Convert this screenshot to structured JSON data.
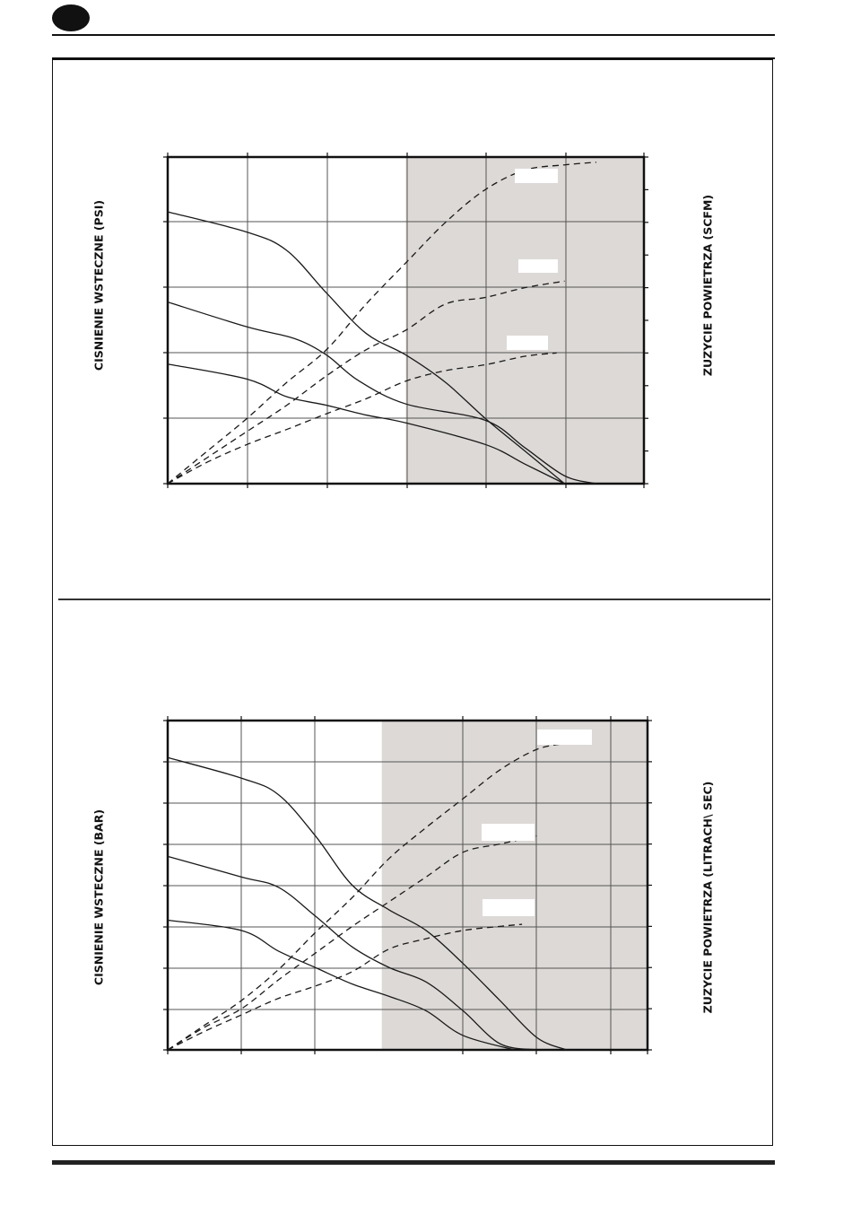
{
  "colors": {
    "shade": "#dcd9d7",
    "line": "#1a1a1a",
    "grid": "#555555"
  },
  "chart_data": [
    {
      "type": "line",
      "title": "",
      "ylabel": "CISNIENIE WSTECZNE  (PSI)",
      "y2label": "ZUZYCIE POWIETRZA  (SCFM)",
      "x_divisions": 6,
      "y_divisions": 5,
      "y2_divisions": 10,
      "shaded_x_range": [
        3.0,
        6.0
      ],
      "series": [
        {
          "style": "solid",
          "points": [
            [
              0,
              4.16
            ],
            [
              1,
              3.85
            ],
            [
              1.5,
              3.57
            ],
            [
              2,
              2.92
            ],
            [
              2.5,
              2.3
            ],
            [
              3,
              1.97
            ],
            [
              3.5,
              1.55
            ],
            [
              4,
              1.0
            ],
            [
              4.5,
              0.5
            ],
            [
              5.0,
              0.0
            ]
          ]
        },
        {
          "style": "solid",
          "points": [
            [
              0,
              2.78
            ],
            [
              1,
              2.4
            ],
            [
              1.6,
              2.22
            ],
            [
              2,
              1.97
            ],
            [
              2.4,
              1.58
            ],
            [
              3,
              1.22
            ],
            [
              4,
              0.97
            ],
            [
              4.5,
              0.55
            ],
            [
              5.0,
              0.12
            ],
            [
              5.4,
              0.0
            ]
          ]
        },
        {
          "style": "solid",
          "points": [
            [
              0,
              1.83
            ],
            [
              1,
              1.6
            ],
            [
              1.5,
              1.33
            ],
            [
              2,
              1.2
            ],
            [
              2.5,
              1.05
            ],
            [
              3,
              0.93
            ],
            [
              4,
              0.6
            ],
            [
              4.5,
              0.3
            ],
            [
              5.0,
              0.0
            ]
          ]
        },
        {
          "style": "dashed",
          "label": "",
          "points": [
            [
              0,
              0
            ],
            [
              0.5,
              0.5
            ],
            [
              1,
              1.0
            ],
            [
              1.5,
              1.55
            ],
            [
              2,
              2.05
            ],
            [
              2.5,
              2.75
            ],
            [
              3,
              3.38
            ],
            [
              3.5,
              4.0
            ],
            [
              4,
              4.5
            ],
            [
              4.5,
              4.8
            ],
            [
              5.0,
              4.88
            ],
            [
              5.4,
              4.92
            ]
          ]
        },
        {
          "style": "dashed",
          "label": "",
          "points": [
            [
              0,
              0
            ],
            [
              0.5,
              0.4
            ],
            [
              1,
              0.8
            ],
            [
              1.5,
              1.2
            ],
            [
              2,
              1.65
            ],
            [
              2.5,
              2.05
            ],
            [
              3,
              2.35
            ],
            [
              3.5,
              2.75
            ],
            [
              4,
              2.85
            ],
            [
              4.5,
              3.0
            ],
            [
              5.0,
              3.1
            ]
          ]
        },
        {
          "style": "dashed",
          "label": "",
          "points": [
            [
              0,
              0
            ],
            [
              0.5,
              0.33
            ],
            [
              1,
              0.6
            ],
            [
              1.5,
              0.83
            ],
            [
              2,
              1.07
            ],
            [
              2.5,
              1.3
            ],
            [
              3,
              1.57
            ],
            [
              3.5,
              1.73
            ],
            [
              4,
              1.82
            ],
            [
              4.5,
              1.95
            ],
            [
              4.9,
              2.0
            ]
          ]
        }
      ]
    },
    {
      "type": "line",
      "title": "",
      "ylabel": "CISNIENIE WSTECZNE  (BAR)",
      "y2label": "ZUZYCIE POWIETRZA (LITRACH\\ SEC)",
      "x_divisions": 6.5,
      "y_divisions": 8,
      "shaded_x_range": [
        2.9,
        6.5
      ],
      "series": [
        {
          "style": "solid",
          "points": [
            [
              0,
              7.1
            ],
            [
              1,
              6.6
            ],
            [
              1.5,
              6.2
            ],
            [
              2,
              5.2
            ],
            [
              2.5,
              4.0
            ],
            [
              3,
              3.4
            ],
            [
              3.5,
              2.9
            ],
            [
              4,
              2.1
            ],
            [
              4.5,
              1.2
            ],
            [
              5.0,
              0.3
            ],
            [
              5.4,
              0.0
            ]
          ]
        },
        {
          "style": "solid",
          "points": [
            [
              0,
              4.7
            ],
            [
              1,
              4.2
            ],
            [
              1.5,
              3.95
            ],
            [
              2,
              3.25
            ],
            [
              2.5,
              2.5
            ],
            [
              3,
              2.0
            ],
            [
              3.5,
              1.65
            ],
            [
              4,
              0.95
            ],
            [
              4.5,
              0.15
            ],
            [
              5.0,
              0.0
            ]
          ]
        },
        {
          "style": "solid",
          "points": [
            [
              0,
              3.15
            ],
            [
              1,
              2.9
            ],
            [
              1.5,
              2.4
            ],
            [
              2,
              2.0
            ],
            [
              2.5,
              1.6
            ],
            [
              3,
              1.3
            ],
            [
              3.5,
              0.95
            ],
            [
              4,
              0.35
            ],
            [
              4.7,
              0.0
            ]
          ]
        },
        {
          "style": "dashed",
          "label": "",
          "points": [
            [
              0,
              0
            ],
            [
              0.5,
              0.6
            ],
            [
              1,
              1.2
            ],
            [
              1.5,
              1.95
            ],
            [
              2,
              2.85
            ],
            [
              2.5,
              3.7
            ],
            [
              3,
              4.65
            ],
            [
              3.5,
              5.4
            ],
            [
              4,
              6.1
            ],
            [
              4.5,
              6.8
            ],
            [
              5.0,
              7.3
            ],
            [
              5.4,
              7.45
            ]
          ]
        },
        {
          "style": "dashed",
          "label": "",
          "points": [
            [
              0,
              0
            ],
            [
              0.5,
              0.55
            ],
            [
              1,
              1.0
            ],
            [
              1.5,
              1.7
            ],
            [
              2,
              2.35
            ],
            [
              2.5,
              3.0
            ],
            [
              3,
              3.6
            ],
            [
              3.5,
              4.2
            ],
            [
              4,
              4.8
            ],
            [
              4.5,
              5.0
            ],
            [
              5.0,
              5.2
            ]
          ]
        },
        {
          "style": "dashed",
          "label": "",
          "points": [
            [
              0,
              0
            ],
            [
              0.5,
              0.45
            ],
            [
              1,
              0.85
            ],
            [
              1.5,
              1.25
            ],
            [
              2,
              1.55
            ],
            [
              2.5,
              1.9
            ],
            [
              3,
              2.45
            ],
            [
              3.5,
              2.7
            ],
            [
              4,
              2.9
            ],
            [
              4.5,
              3.0
            ],
            [
              4.8,
              3.05
            ]
          ]
        }
      ]
    }
  ]
}
